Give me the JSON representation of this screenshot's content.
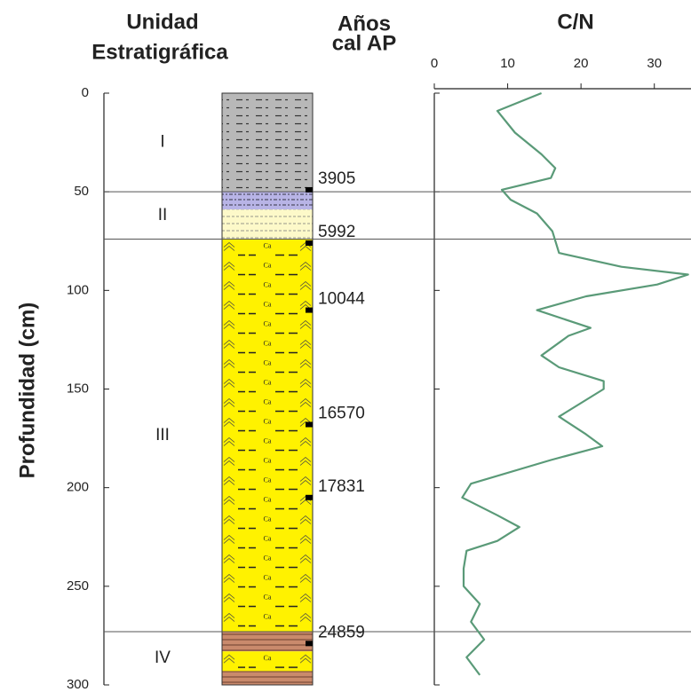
{
  "chart_data": {
    "type": "line",
    "headers": {
      "unit": [
        "Unidad",
        "Estratigráfica"
      ],
      "age": [
        "Años",
        "cal AP"
      ],
      "cn": "C/N"
    },
    "ylabel": "Profundidad (cm)",
    "ylim": [
      0,
      300
    ],
    "yticks": [
      0,
      50,
      100,
      150,
      200,
      250,
      300
    ],
    "xlim": [
      0,
      35
    ],
    "xticks": [
      0,
      10,
      20,
      30
    ],
    "units": [
      {
        "label": "I",
        "top": 0,
        "bottom": 50
      },
      {
        "label": "II",
        "top": 50,
        "bottom": 74
      },
      {
        "label": "III",
        "top": 74,
        "bottom": 273
      },
      {
        "label": "IV",
        "top": 273,
        "bottom": 300
      }
    ],
    "layers": [
      {
        "top": 0,
        "bottom": 50,
        "pattern": "dash"
      },
      {
        "top": 50,
        "bottom": 59,
        "pattern": "dots"
      },
      {
        "top": 59,
        "bottom": 74,
        "pattern": "cream"
      },
      {
        "top": 74,
        "bottom": 273,
        "pattern": "ca",
        "symbol": "Ca"
      },
      {
        "top": 273,
        "bottom": 283,
        "pattern": "stripe"
      },
      {
        "top": 283,
        "bottom": 293,
        "pattern": "ca",
        "symbol": "Ca"
      },
      {
        "top": 293,
        "bottom": 300,
        "pattern": "stripe"
      }
    ],
    "ages": [
      {
        "age": 3905,
        "depth": 49
      },
      {
        "age": 5992,
        "depth": 76
      },
      {
        "age": 10044,
        "depth": 110
      },
      {
        "age": 16570,
        "depth": 168
      },
      {
        "age": 17831,
        "depth": 205
      },
      {
        "age": 24859,
        "depth": 279
      }
    ],
    "depth": [
      0,
      9,
      20,
      31,
      38,
      43,
      49,
      54,
      61,
      70,
      81,
      88,
      92,
      97,
      103,
      110,
      119,
      123,
      133,
      139,
      146,
      150,
      164,
      173,
      179,
      186,
      198,
      205,
      214,
      220,
      227,
      232,
      241,
      250,
      259,
      268,
      277,
      286,
      295
    ],
    "values": [
      14.6,
      8.6,
      11,
      14.6,
      16.5,
      15.9,
      9.2,
      10.4,
      14,
      16.1,
      17,
      25.5,
      34.6,
      30.4,
      20.7,
      14,
      21.3,
      18.3,
      14.6,
      17,
      23.1,
      23.1,
      17,
      20.7,
      22.9,
      15.9,
      5,
      3.8,
      8.6,
      11.6,
      8.6,
      4.4,
      4,
      4,
      6.2,
      5,
      6.8,
      4.4,
      6.2
    ],
    "color": "#5a9a78"
  }
}
